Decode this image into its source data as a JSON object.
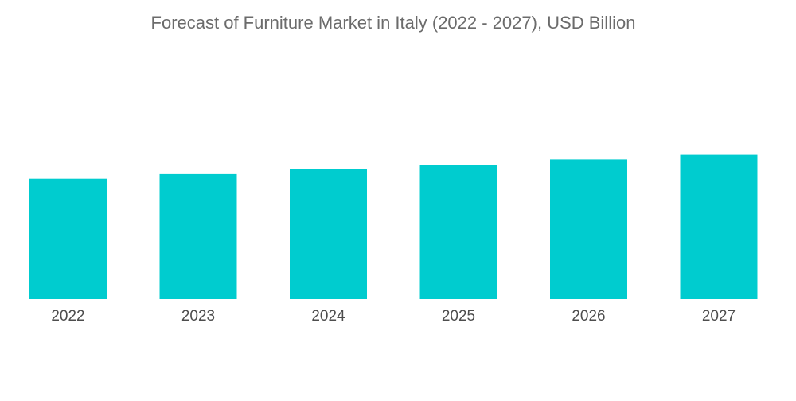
{
  "chart_data": {
    "type": "bar",
    "title": "Forecast of Furniture Market in Italy (2022 - 2027), USD Billion",
    "xlabel": "",
    "ylabel": "",
    "categories": [
      "2022",
      "2023",
      "2024",
      "2025",
      "2026",
      "2027"
    ],
    "values": [
      15.6,
      16.2,
      16.8,
      17.4,
      18.1,
      18.7
    ],
    "ylim": [
      0,
      20
    ],
    "grid": false,
    "legend": "none",
    "colors": {
      "bar": "#00CCCF",
      "title": "#6b6b6b",
      "tick_label": "#4d4d4d"
    }
  }
}
